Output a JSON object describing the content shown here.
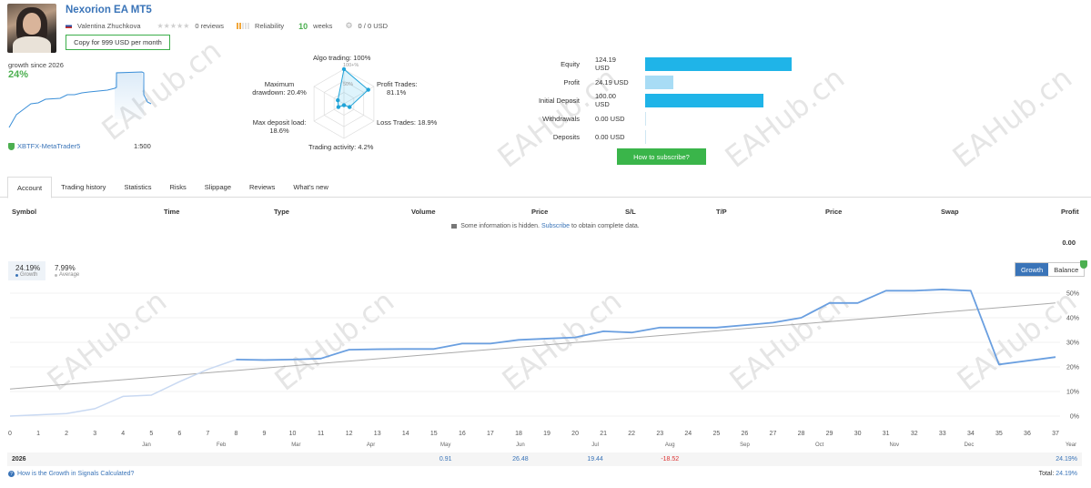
{
  "header": {
    "title": "Nexorion EA MT5",
    "author": "Valentina Zhuchkova",
    "reviews": "0 reviews",
    "reliability": "Reliability",
    "weeks_num": "10",
    "weeks_word": "weeks",
    "funds": "0 / 0 USD",
    "copy_label": "Copy for 999 USD per month"
  },
  "growth_card": {
    "label": "growth since 2026",
    "value": "24%",
    "broker": "XBTFX-MetaTrader5",
    "leverage": "1:500"
  },
  "radar": {
    "algo": "Algo trading: 100%",
    "profit": "Profit Trades:",
    "profit_v": "81.1%",
    "loss": "Loss Trades: 18.9%",
    "activity": "Trading activity: 4.2%",
    "deposit": "Max deposit load:",
    "deposit_v": "18.6%",
    "drawdown": "Maximum",
    "drawdown_v": "drawdown: 20.4%",
    "ring_100": "100+%",
    "ring_50": "50%",
    "values": {
      "algo": 100,
      "profit": 81.1,
      "loss": 18.9,
      "activity": 4.2,
      "deposit": 18.6,
      "drawdown": 20.4
    }
  },
  "balance_bars": [
    {
      "label": "Equity",
      "value": "124.19 USD",
      "amount": 124.19,
      "color": "#1fb4e8"
    },
    {
      "label": "Profit",
      "value": "24.19 USD",
      "amount": 24.19,
      "color": "#a8dcf5"
    },
    {
      "label": "Initial Deposit",
      "value": "100.00 USD",
      "amount": 100.0,
      "color": "#1fb4e8"
    },
    {
      "label": "Withdrawals",
      "value": "0.00 USD",
      "amount": 0,
      "color": "#1fb4e8"
    },
    {
      "label": "Deposits",
      "value": "0.00 USD",
      "amount": 0,
      "color": "#1fb4e8"
    }
  ],
  "subscribe_label": "How to subscribe?",
  "tabs": [
    "Account",
    "Trading history",
    "Statistics",
    "Risks",
    "Slippage",
    "Reviews",
    "What's new"
  ],
  "table": {
    "headers": [
      "Symbol",
      "Time",
      "Type",
      "Volume",
      "Price",
      "S/L",
      "T/P",
      "Price",
      "Swap",
      "Profit"
    ],
    "info_pre": "Some information is hidden.",
    "info_link": "Subscribe",
    "info_post": "to obtain complete data.",
    "profit_total": "0.00"
  },
  "growth_chart": {
    "growth_value": "24.19%",
    "growth_label": "Growth",
    "average_value": "7.99%",
    "average_label": "Average",
    "toggle_growth": "Growth",
    "toggle_balance": "Balance",
    "year_label": "Year",
    "months": [
      "Jan",
      "Feb",
      "Mar",
      "Apr",
      "May",
      "Jun",
      "Jul",
      "Aug",
      "Sep",
      "Oct",
      "Nov",
      "Dec"
    ],
    "row_year": "2026",
    "monthly": [
      {
        "month": "May",
        "value": "0.91"
      },
      {
        "month": "Jun",
        "value": "26.48"
      },
      {
        "month": "Jul",
        "value": "19.44"
      },
      {
        "month": "Aug",
        "value": "-18.52"
      }
    ],
    "row_total": "24.19%",
    "footer_link": "How is the Growth in Signals Calculated?",
    "total_label": "Total:",
    "total_value": "24.19%"
  },
  "watermark": "EAHub.cn",
  "chart_data": {
    "type": "line",
    "x": [
      0,
      1,
      2,
      3,
      4,
      5,
      6,
      7,
      8,
      9,
      10,
      11,
      12,
      13,
      14,
      15,
      16,
      17,
      18,
      19,
      20,
      21,
      22,
      23,
      24,
      25,
      26,
      27,
      28,
      29,
      30,
      31,
      32,
      33,
      34,
      35,
      36,
      37
    ],
    "xlim": [
      0,
      37
    ],
    "ylim": [
      0,
      50
    ],
    "yticks": [
      0,
      10,
      20,
      30,
      40,
      50
    ],
    "series": [
      {
        "name": "Growth",
        "color": "#6a9fe0",
        "values": [
          0,
          0.5,
          1,
          3,
          8,
          8.5,
          14,
          19,
          23,
          22.8,
          23,
          23.4,
          27,
          27.2,
          27.3,
          27.3,
          29.5,
          29.5,
          31,
          31.5,
          32,
          34.5,
          34,
          36,
          36,
          36,
          37,
          38,
          40,
          46,
          46,
          51,
          51,
          51.5,
          51,
          21,
          22.5,
          24
        ]
      },
      {
        "trend_from": 11,
        "trend_to": 46,
        "color": "#aaaaaa"
      }
    ]
  }
}
